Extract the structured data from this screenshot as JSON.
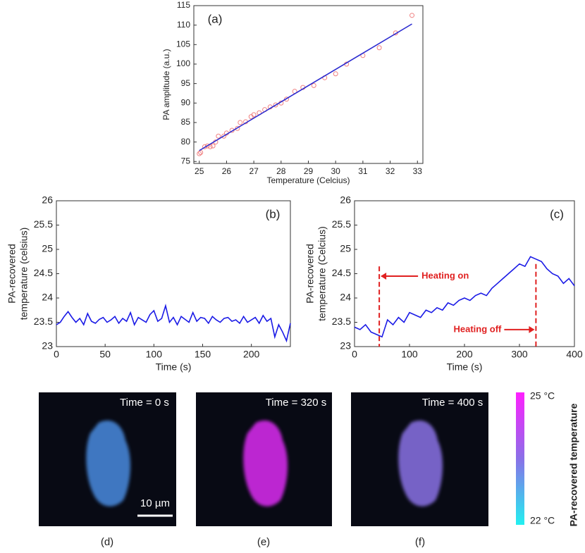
{
  "chart_data": [
    {
      "type": "scatter",
      "panel_label": "(a)",
      "xlabel": "Temperature (Celcius)",
      "ylabel": "PA amplitude (a.u.)",
      "xlim": [
        24.8,
        33.2
      ],
      "xticks": [
        25,
        26,
        27,
        28,
        29,
        30,
        31,
        32,
        33
      ],
      "ylim": [
        74.5,
        115
      ],
      "yticks": [
        75,
        80,
        85,
        90,
        95,
        100,
        105,
        110,
        115
      ],
      "series": [
        {
          "mode": "markers",
          "color": "#f08080",
          "x": [
            25,
            25.05,
            25.2,
            25.3,
            25.4,
            25.5,
            25.6,
            25.7,
            25.9,
            26,
            26.2,
            26.4,
            26.5,
            26.7,
            26.9,
            27,
            27.2,
            27.4,
            27.6,
            27.8,
            28,
            28.2,
            28.5,
            28.8,
            29.2,
            29.6,
            30,
            30.4,
            31,
            31.6,
            32.2,
            32.8
          ],
          "values": [
            77,
            77.3,
            78.8,
            79,
            78.8,
            79,
            80,
            81.5,
            81.5,
            82.3,
            83,
            83.5,
            85,
            85.2,
            86.5,
            87,
            87.5,
            88.3,
            89,
            89.5,
            90,
            91,
            93,
            94,
            94.5,
            96.5,
            97.5,
            100,
            102.2,
            104.2,
            108,
            112.5
          ]
        },
        {
          "mode": "line",
          "color": "#2a2ad0",
          "x": [
            25,
            32.8
          ],
          "values": [
            77.8,
            110.3
          ]
        }
      ]
    },
    {
      "type": "line",
      "panel_label": "(b)",
      "xlabel": "Time (s)",
      "ylabel": [
        "PA-recovered",
        "temperature (celsius)"
      ],
      "xlim": [
        0,
        240
      ],
      "xticks": [
        0,
        50,
        100,
        150,
        200
      ],
      "ylim": [
        23,
        26
      ],
      "yticks": [
        23,
        23.5,
        24,
        24.5,
        25,
        25.5,
        26
      ],
      "series": [
        {
          "mode": "line",
          "color": "#1a1ae6",
          "x": [
            0,
            4,
            8,
            12,
            16,
            20,
            24,
            28,
            32,
            36,
            40,
            44,
            48,
            52,
            56,
            60,
            64,
            68,
            72,
            76,
            80,
            84,
            88,
            92,
            96,
            100,
            104,
            108,
            112,
            116,
            120,
            124,
            128,
            132,
            136,
            140,
            144,
            148,
            152,
            156,
            160,
            164,
            168,
            172,
            176,
            180,
            184,
            188,
            192,
            196,
            200,
            204,
            208,
            212,
            216,
            220,
            224,
            228,
            232,
            236,
            240
          ],
          "values": [
            23.45,
            23.5,
            23.62,
            23.72,
            23.6,
            23.5,
            23.58,
            23.45,
            23.68,
            23.52,
            23.48,
            23.56,
            23.6,
            23.5,
            23.55,
            23.62,
            23.48,
            23.58,
            23.52,
            23.7,
            23.45,
            23.6,
            23.55,
            23.5,
            23.66,
            23.74,
            23.52,
            23.58,
            23.84,
            23.5,
            23.6,
            23.45,
            23.62,
            23.56,
            23.5,
            23.7,
            23.52,
            23.6,
            23.58,
            23.48,
            23.62,
            23.55,
            23.5,
            23.58,
            23.6,
            23.52,
            23.55,
            23.48,
            23.62,
            23.5,
            23.55,
            23.6,
            23.48,
            23.64,
            23.52,
            23.58,
            23.2,
            23.45,
            23.3,
            23.12,
            23.48
          ]
        }
      ]
    },
    {
      "type": "line",
      "panel_label": "(c)",
      "xlabel": "Time (s)",
      "ylabel": [
        "PA-recovered",
        "temperature (Celcius)"
      ],
      "xlim": [
        0,
        400
      ],
      "xticks": [
        0,
        100,
        200,
        300,
        400
      ],
      "ylim": [
        23,
        26
      ],
      "yticks": [
        23,
        23.5,
        24,
        24.5,
        25,
        25.5,
        26
      ],
      "series": [
        {
          "mode": "line",
          "color": "#1a1ae6",
          "x": [
            0,
            10,
            20,
            30,
            40,
            50,
            60,
            70,
            80,
            90,
            100,
            110,
            120,
            130,
            140,
            150,
            160,
            170,
            180,
            190,
            200,
            210,
            220,
            230,
            240,
            250,
            260,
            270,
            280,
            290,
            300,
            310,
            320,
            330,
            340,
            350,
            360,
            370,
            380,
            390,
            400
          ],
          "values": [
            23.4,
            23.35,
            23.45,
            23.3,
            23.25,
            23.2,
            23.55,
            23.45,
            23.6,
            23.5,
            23.7,
            23.65,
            23.6,
            23.75,
            23.7,
            23.8,
            23.75,
            23.9,
            23.85,
            23.95,
            24.0,
            23.95,
            24.05,
            24.1,
            24.05,
            24.2,
            24.3,
            24.4,
            24.5,
            24.6,
            24.7,
            24.65,
            24.85,
            24.8,
            24.75,
            24.6,
            24.5,
            24.45,
            24.3,
            24.4,
            24.25
          ]
        }
      ],
      "annotations": [
        {
          "text": "Heating on",
          "x": 45,
          "color": "#e02020"
        },
        {
          "text": "Heating off",
          "x": 330,
          "color": "#e02020"
        }
      ]
    }
  ],
  "images": {
    "panels": [
      {
        "time": "Time = 0 s",
        "label": "(d)",
        "color": "#4a8be0"
      },
      {
        "time": "Time = 320 s",
        "label": "(e)",
        "color": "#d02ae6"
      },
      {
        "time": "Time = 400 s",
        "label": "(f)",
        "color": "#8a72e6"
      }
    ],
    "scale_bar": "10 µm",
    "colorbar": {
      "top": "25 °C",
      "bottom": "22 °C",
      "label": "PA-recovered temperature"
    }
  }
}
